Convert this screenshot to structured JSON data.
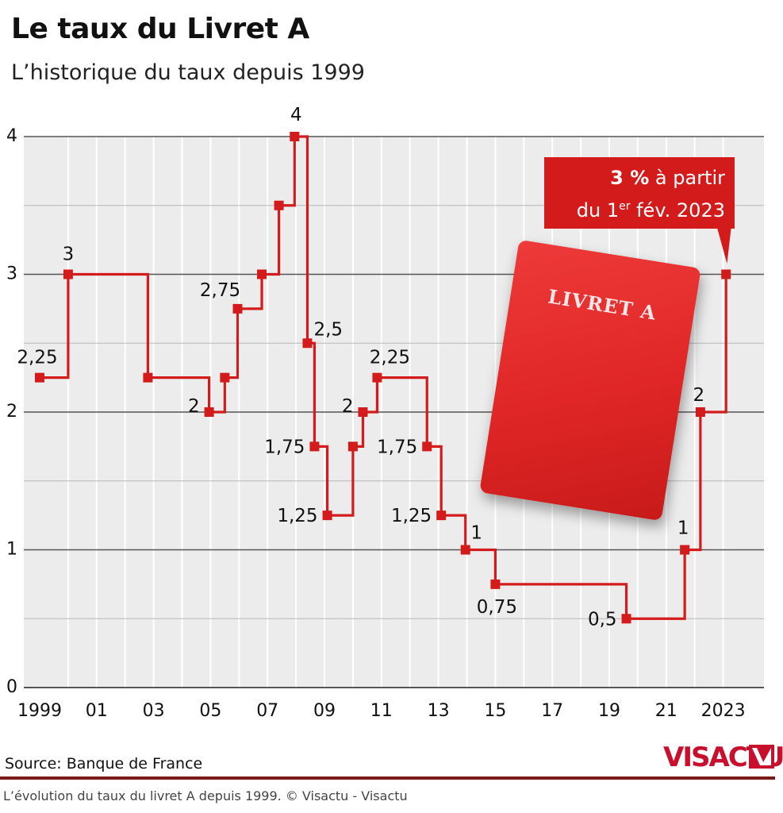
{
  "header": {
    "title": "Le taux du Livret A",
    "subtitle": "L’historique du taux depuis 1999"
  },
  "chart_data": {
    "type": "line",
    "step": true,
    "ylim": [
      0,
      4
    ],
    "y_ticks": [
      0,
      1,
      2,
      3,
      4
    ],
    "y_tick_labels": [
      "0",
      "1",
      "2",
      "3",
      "4"
    ],
    "x_ticks": [
      1999,
      2001,
      2003,
      2005,
      2007,
      2009,
      2011,
      2013,
      2015,
      2017,
      2019,
      2021,
      2023
    ],
    "x_tick_labels": [
      "1999",
      "01",
      "03",
      "05",
      "07",
      "09",
      "11",
      "13",
      "15",
      "17",
      "19",
      "21",
      "2023"
    ],
    "xlim": [
      1999,
      2023.8
    ],
    "grid": true,
    "color": "#d31b1b",
    "points": [
      {
        "x": 1999.0,
        "y": 2.25,
        "label": "2,25"
      },
      {
        "x": 2000.0,
        "y": 3.0,
        "label": "3"
      },
      {
        "x": 2002.8,
        "y": 2.25,
        "label": ""
      },
      {
        "x": 2004.95,
        "y": 2.0,
        "label": "2"
      },
      {
        "x": 2005.5,
        "y": 2.25,
        "label": ""
      },
      {
        "x": 2005.95,
        "y": 2.75,
        "label": "2,75"
      },
      {
        "x": 2006.8,
        "y": 3.0,
        "label": ""
      },
      {
        "x": 2007.4,
        "y": 3.5,
        "label": ""
      },
      {
        "x": 2007.95,
        "y": 4.0,
        "label": "4"
      },
      {
        "x": 2008.4,
        "y": 2.5,
        "label": "2,5"
      },
      {
        "x": 2008.65,
        "y": 1.75,
        "label": "1,75"
      },
      {
        "x": 2009.1,
        "y": 1.25,
        "label": "1,25"
      },
      {
        "x": 2010.0,
        "y": 1.75,
        "label": ""
      },
      {
        "x": 2010.35,
        "y": 2.0,
        "label": "2"
      },
      {
        "x": 2010.85,
        "y": 2.25,
        "label": "2,25"
      },
      {
        "x": 2012.6,
        "y": 1.75,
        "label": "1,75"
      },
      {
        "x": 2013.1,
        "y": 1.25,
        "label": "1,25"
      },
      {
        "x": 2013.95,
        "y": 1.0,
        "label": "1"
      },
      {
        "x": 2015.0,
        "y": 0.75,
        "label": "0,75"
      },
      {
        "x": 2019.6,
        "y": 0.5,
        "label": "0,5"
      },
      {
        "x": 2021.65,
        "y": 1.0,
        "label": "1"
      },
      {
        "x": 2022.2,
        "y": 2.0,
        "label": "2"
      },
      {
        "x": 2023.1,
        "y": 3.0,
        "label": ""
      }
    ],
    "annotation": {
      "bold": "3 %",
      "line1_rest": " à partir",
      "line2_start": "du 1",
      "line2_sup": "er",
      "line2_end": " fév. 2023"
    }
  },
  "illustration": {
    "passbook_label": "LIVRET A"
  },
  "footer": {
    "source": "Source: Banque de France",
    "logo": "VISACTU",
    "caption": "L’évolution du taux du livret A depuis 1999. © Visactu - Visactu"
  }
}
